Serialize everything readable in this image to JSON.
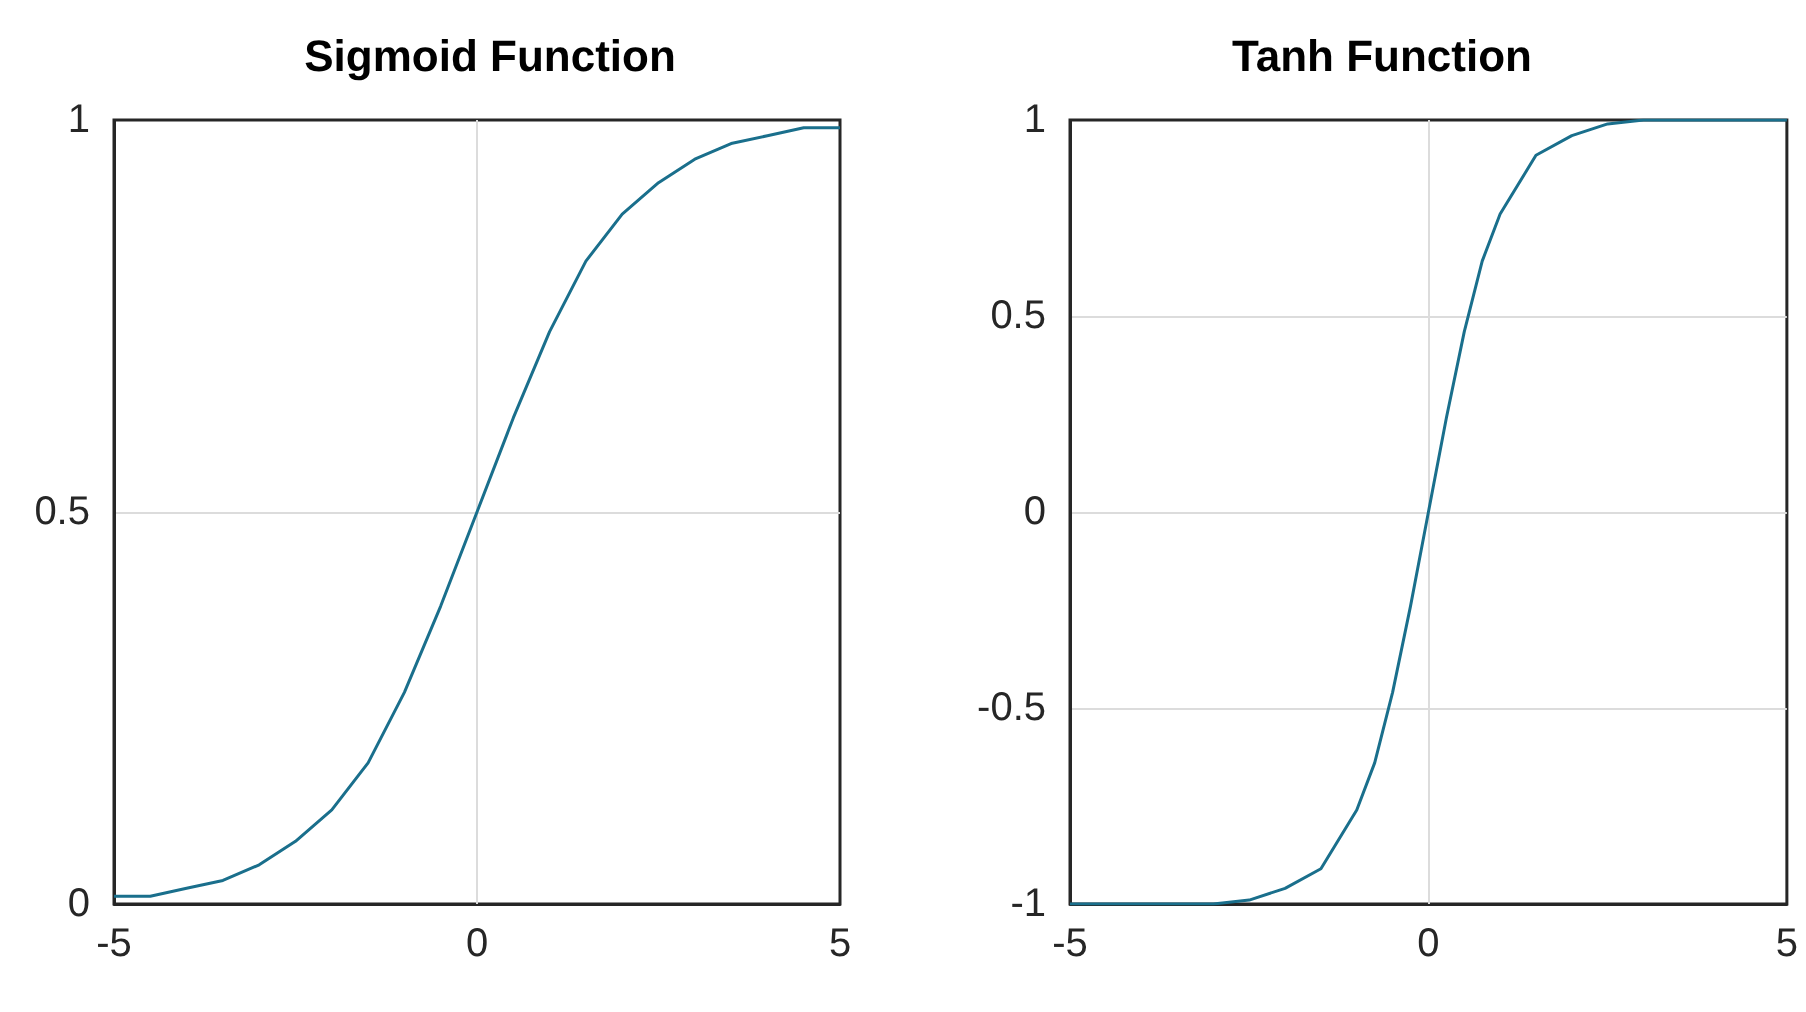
{
  "chart_data": [
    {
      "type": "line",
      "title": "Sigmoid Function",
      "x": [
        -5,
        -4.5,
        -4,
        -3.5,
        -3,
        -2.5,
        -2,
        -1.5,
        -1,
        -0.5,
        0,
        0.5,
        1,
        1.5,
        2,
        2.5,
        3,
        3.5,
        4,
        4.5,
        5
      ],
      "series": [
        {
          "color": "#1a6f8c",
          "values": [
            0.01,
            0.01,
            0.02,
            0.03,
            0.05,
            0.08,
            0.12,
            0.18,
            0.27,
            0.38,
            0.5,
            0.62,
            0.73,
            0.82,
            0.88,
            0.92,
            0.95,
            0.97,
            0.98,
            0.99,
            0.99
          ]
        }
      ],
      "xlim": [
        -5,
        5
      ],
      "xticks": [
        -5,
        0,
        5
      ],
      "ylim": [
        0,
        1
      ],
      "yticks": [
        0,
        0.5,
        1
      ],
      "grid": true,
      "marker": "none"
    },
    {
      "type": "line",
      "title": "Tanh Function",
      "x": [
        -5,
        -4,
        -3,
        -2.5,
        -2,
        -1.5,
        -1,
        -0.75,
        -0.5,
        -0.25,
        0,
        0.25,
        0.5,
        0.75,
        1,
        1.5,
        2,
        2.5,
        3,
        4,
        5
      ],
      "series": [
        {
          "color": "#1a6f8c",
          "values": [
            -1,
            -1,
            -1,
            -0.99,
            -0.96,
            -0.91,
            -0.76,
            -0.64,
            -0.46,
            -0.24,
            0,
            0.24,
            0.46,
            0.64,
            0.76,
            0.91,
            0.96,
            0.99,
            1,
            1,
            1
          ]
        }
      ],
      "xlim": [
        -5,
        5
      ],
      "xticks": [
        -5,
        0,
        5
      ],
      "ylim": [
        -1,
        1
      ],
      "yticks": [
        -1,
        -0.5,
        0,
        0.5,
        1
      ],
      "grid": true,
      "marker": "none"
    }
  ]
}
